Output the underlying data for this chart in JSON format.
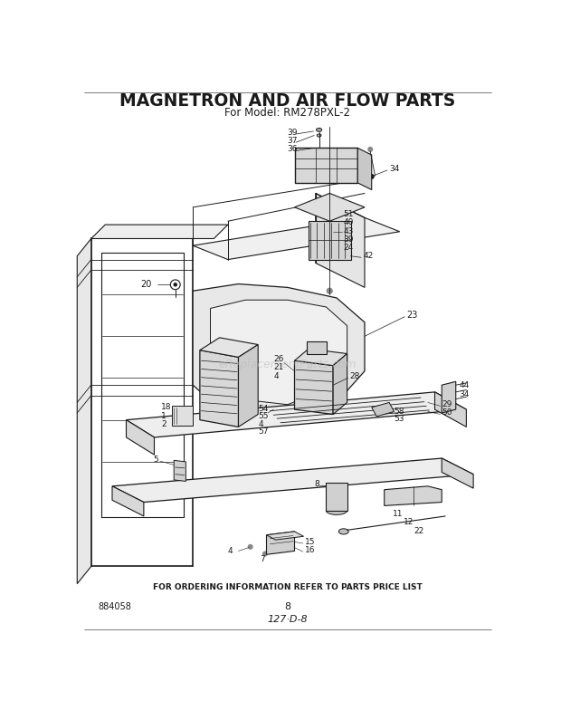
{
  "title": "MAGNETRON AND AIR FLOW PARTS",
  "subtitle": "For Model: RM278PXL-2",
  "background_color": "#ffffff",
  "line_color": "#1a1a1a",
  "title_fontsize": 13,
  "subtitle_fontsize": 8.5,
  "watermark": "eReplacementParts.com",
  "footer_text": "FOR ORDERING INFORMATION REFER TO PARTS PRICE LIST",
  "bottom_left": "884058",
  "bottom_center": "8",
  "bottom_script": "127·D-8",
  "fig_width": 6.2,
  "fig_height": 7.84,
  "dpi": 100
}
